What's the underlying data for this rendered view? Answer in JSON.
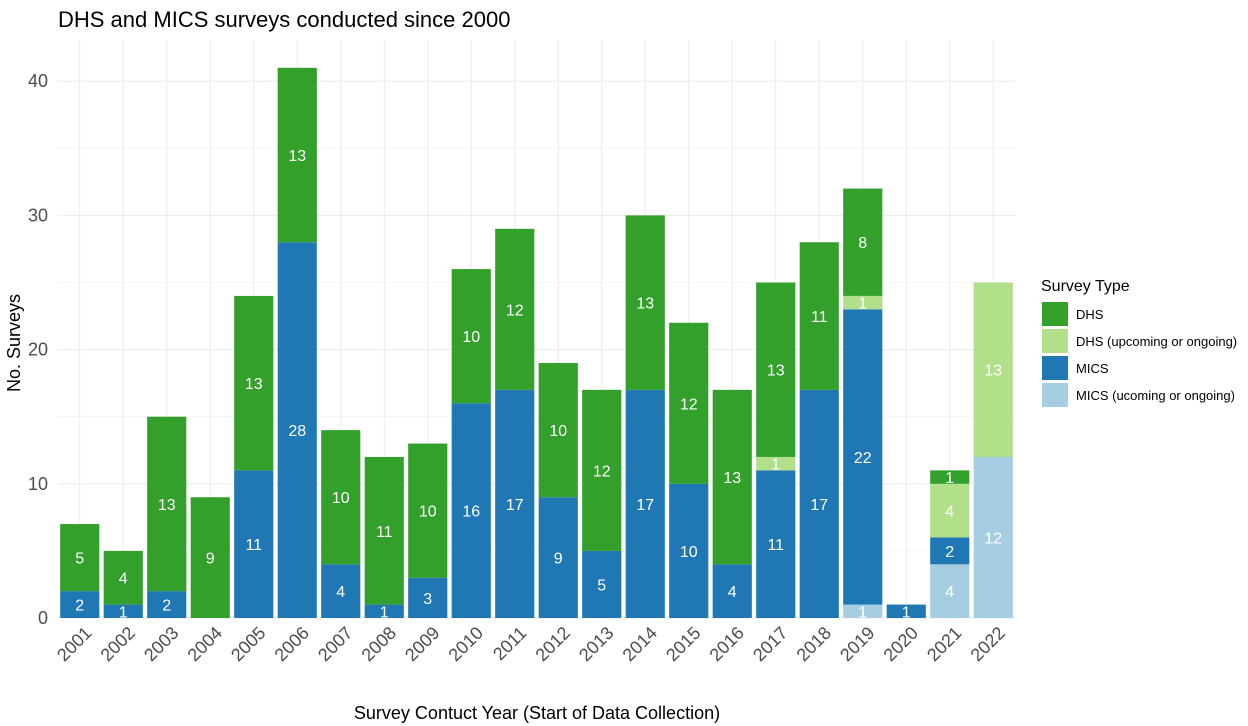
{
  "chart_data": {
    "type": "bar",
    "stacked": true,
    "title": "DHS and MICS surveys conducted since 2000",
    "xlabel": "Survey Contuct Year (Start of Data Collection)",
    "ylabel": "No. Surveys",
    "ylim": [
      0,
      43
    ],
    "yticks": [
      0,
      10,
      20,
      30,
      40
    ],
    "grid": true,
    "legend_position": "right",
    "legend_title": "Survey Type",
    "categories": [
      "2001",
      "2002",
      "2003",
      "2004",
      "2005",
      "2006",
      "2007",
      "2008",
      "2009",
      "2010",
      "2011",
      "2012",
      "2013",
      "2014",
      "2015",
      "2016",
      "2017",
      "2018",
      "2019",
      "2020",
      "2021",
      "2022"
    ],
    "stack_order": [
      "MICS (ucoming or ongoing)",
      "MICS",
      "DHS (upcoming or ongoing)",
      "DHS"
    ],
    "series": [
      {
        "name": "DHS",
        "color": "#33a02c",
        "values": [
          5,
          4,
          13,
          9,
          13,
          13,
          10,
          11,
          10,
          10,
          12,
          10,
          12,
          13,
          12,
          13,
          13,
          11,
          8,
          0,
          1,
          0
        ]
      },
      {
        "name": "DHS (upcoming or ongoing)",
        "color": "#b2df8a",
        "values": [
          0,
          0,
          0,
          0,
          0,
          0,
          0,
          0,
          0,
          0,
          0,
          0,
          0,
          0,
          0,
          0,
          1,
          0,
          1,
          0,
          4,
          13
        ]
      },
      {
        "name": "MICS",
        "color": "#1f78b4",
        "values": [
          2,
          1,
          2,
          0,
          11,
          28,
          4,
          1,
          3,
          16,
          17,
          9,
          5,
          17,
          10,
          4,
          11,
          17,
          22,
          1,
          2,
          0
        ]
      },
      {
        "name": "MICS (ucoming or ongoing)",
        "color": "#a6cee3",
        "values": [
          0,
          0,
          0,
          0,
          0,
          0,
          0,
          0,
          0,
          0,
          0,
          0,
          0,
          0,
          0,
          0,
          0,
          0,
          1,
          0,
          4,
          12
        ]
      }
    ]
  }
}
